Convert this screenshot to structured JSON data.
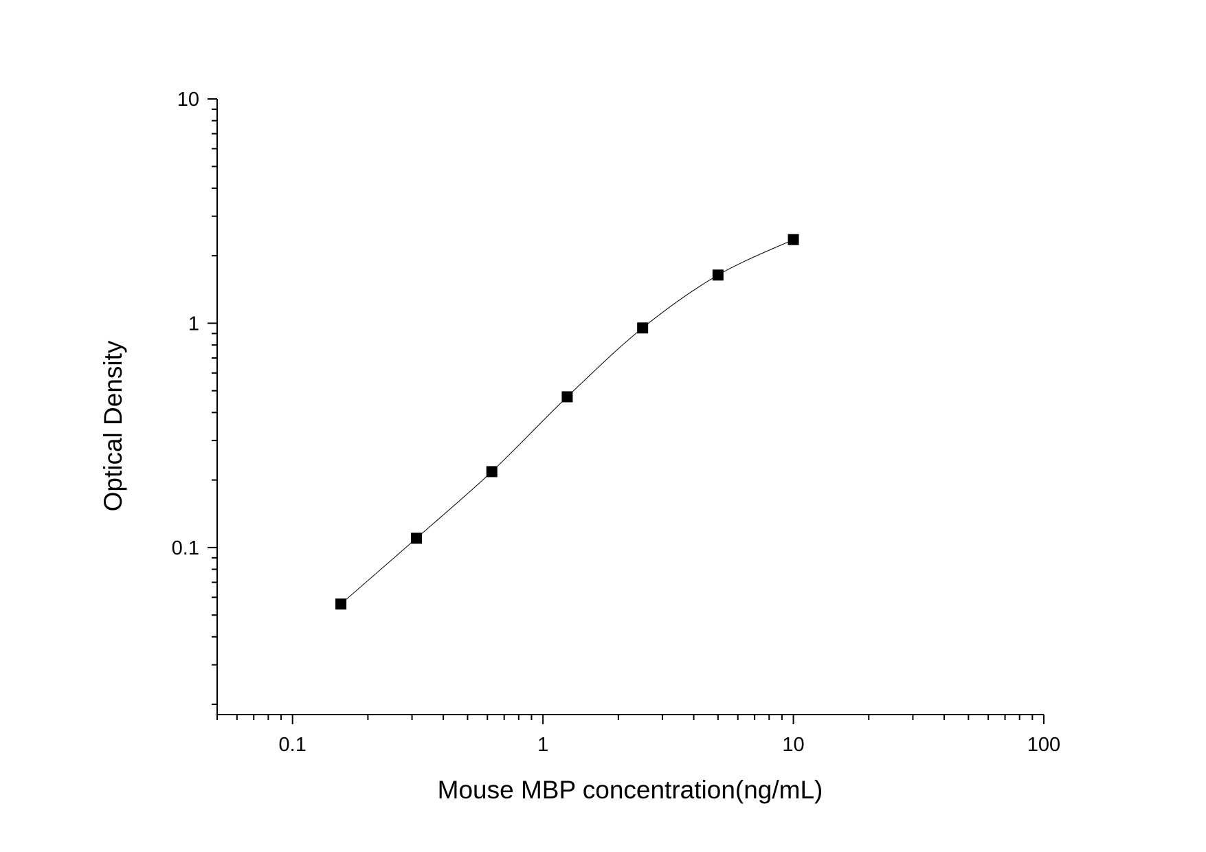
{
  "chart_data": {
    "type": "scatter",
    "xlabel": "Mouse MBP concentration(ng/mL)",
    "ylabel": "Optical Density",
    "x_scale": "log",
    "y_scale": "log",
    "xlim": [
      0.05,
      100
    ],
    "ylim": [
      0.018,
      10
    ],
    "x_ticks": [
      "0.1",
      "1",
      "10",
      "100"
    ],
    "y_ticks": [
      "0.1",
      "1",
      "10"
    ],
    "grid": false,
    "marker": "square",
    "fit_curve": true,
    "color": "#000000",
    "x": [
      0.156,
      0.3125,
      0.625,
      1.25,
      2.5,
      5,
      10
    ],
    "y": [
      0.056,
      0.11,
      0.218,
      0.47,
      0.953,
      1.64,
      2.36
    ]
  }
}
